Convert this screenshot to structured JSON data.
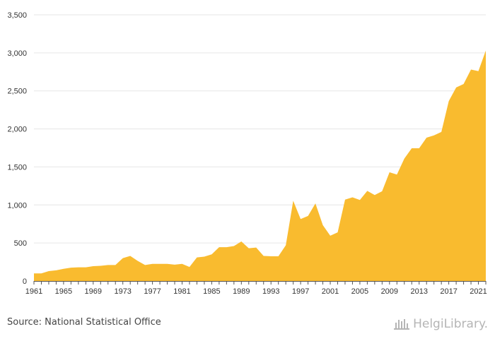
{
  "chart_data": {
    "type": "area",
    "color": "#f9bb2f",
    "grid": true,
    "ylim": [
      0,
      3500
    ],
    "yticks": [
      0,
      500,
      1000,
      1500,
      2000,
      2500,
      3000,
      3500
    ],
    "ytick_labels": [
      "0",
      "500",
      "1,000",
      "1,500",
      "2,000",
      "2,500",
      "3,000",
      "3,500"
    ],
    "xticks": [
      1961,
      1965,
      1969,
      1973,
      1977,
      1981,
      1985,
      1989,
      1993,
      1997,
      2001,
      2005,
      2009,
      2013,
      2017,
      2021
    ],
    "x": [
      1961,
      1962,
      1963,
      1964,
      1965,
      1966,
      1967,
      1968,
      1969,
      1970,
      1971,
      1972,
      1973,
      1974,
      1975,
      1976,
      1977,
      1978,
      1979,
      1980,
      1981,
      1982,
      1983,
      1984,
      1985,
      1986,
      1987,
      1988,
      1989,
      1990,
      1991,
      1992,
      1993,
      1994,
      1995,
      1996,
      1997,
      1998,
      1999,
      2000,
      2001,
      2002,
      2003,
      2004,
      2005,
      2006,
      2007,
      2008,
      2009,
      2010,
      2011,
      2012,
      2013,
      2014,
      2015,
      2016,
      2017,
      2018,
      2019,
      2020,
      2021,
      2022
    ],
    "values": [
      100,
      100,
      130,
      140,
      160,
      175,
      180,
      180,
      195,
      200,
      210,
      210,
      300,
      330,
      265,
      210,
      225,
      225,
      225,
      215,
      225,
      185,
      310,
      320,
      350,
      445,
      445,
      460,
      520,
      430,
      440,
      330,
      325,
      325,
      470,
      1055,
      815,
      855,
      1020,
      735,
      595,
      640,
      1070,
      1100,
      1065,
      1185,
      1130,
      1180,
      1430,
      1400,
      1610,
      1745,
      1745,
      1885,
      1915,
      1960,
      2365,
      2545,
      2590,
      2780,
      2760,
      3030
    ]
  },
  "source": "Source: National Statistical Office",
  "logo": {
    "text": "HelgiLibrary.",
    "icon": "building-columns-icon"
  }
}
